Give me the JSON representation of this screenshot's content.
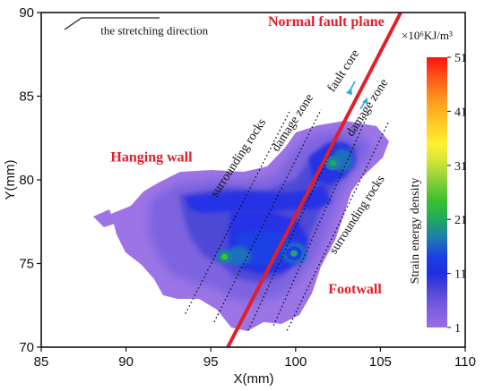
{
  "chart_data": {
    "type": "heatmap",
    "xlabel": "X(mm)",
    "ylabel": "Y(mm)",
    "xlim": [
      85,
      110
    ],
    "ylim": [
      70,
      90
    ],
    "x_ticks": [
      "85",
      "90",
      "95",
      "100",
      "105",
      "110"
    ],
    "y_ticks": [
      "70",
      "75",
      "80",
      "85",
      "90"
    ],
    "colorbar": {
      "label": "Strain energy density",
      "unit": "×10⁶KJ/m³",
      "ticks": [
        "51",
        "41",
        "31",
        "21",
        "11",
        "1"
      ],
      "min": 1,
      "max": 51,
      "colors": [
        "#9b6ee0",
        "#7b5ee0",
        "#4d46d8",
        "#1f2ee0",
        "#1a3fe8",
        "#1f7ab0",
        "#21a85f",
        "#3dbf2f",
        "#8fd13a",
        "#d7e636",
        "#fff033",
        "#ffc823",
        "#ff9a1e",
        "#ff5a17",
        "#ff1212"
      ]
    },
    "hot_spots": [
      {
        "x": 95.8,
        "y": 75.4,
        "value": 19
      },
      {
        "x": 99.9,
        "y": 75.6,
        "value": 17
      },
      {
        "x": 102.2,
        "y": 81.0,
        "value": 18
      }
    ],
    "fault_plane": {
      "x": [
        96.0,
        106.2
      ],
      "y": [
        70.0,
        90.0
      ]
    },
    "zone_lines": [
      {
        "x": [
          93.5,
          99.7
        ],
        "y": [
          72.0,
          84.2
        ]
      },
      {
        "x": [
          95.2,
          101.5
        ],
        "y": [
          71.5,
          84.2
        ]
      },
      {
        "x": [
          97.2,
          102.9
        ],
        "y": [
          71.0,
          83.5
        ]
      },
      {
        "x": [
          98.7,
          104.3
        ],
        "y": [
          71.3,
          84.0
        ]
      },
      {
        "x": [
          99.5,
          105.5
        ],
        "y": [
          71.0,
          83.5
        ]
      }
    ],
    "annotations": [
      {
        "text": "the stretching direction",
        "x": 88.5,
        "y": 88.7
      },
      {
        "text": "Normal fault plane",
        "x": 101.8,
        "y": 89.2
      },
      {
        "text": "Hanging wall",
        "x": 91.5,
        "y": 81.1
      },
      {
        "text": "Footwall",
        "x": 103.5,
        "y": 73.2
      },
      {
        "text": "surrounding rocks",
        "x": 96.8,
        "y": 81.2,
        "rotate": -57
      },
      {
        "text": "damage zone",
        "x": 100.0,
        "y": 83.3,
        "rotate": -57
      },
      {
        "text": "fault core",
        "x": 103.0,
        "y": 86.4,
        "rotate": -57
      },
      {
        "text": "damage zone",
        "x": 104.4,
        "y": 84.2,
        "rotate": -57
      },
      {
        "text": "surrounding rocks",
        "x": 103.8,
        "y": 77.8,
        "rotate": -57
      }
    ]
  }
}
